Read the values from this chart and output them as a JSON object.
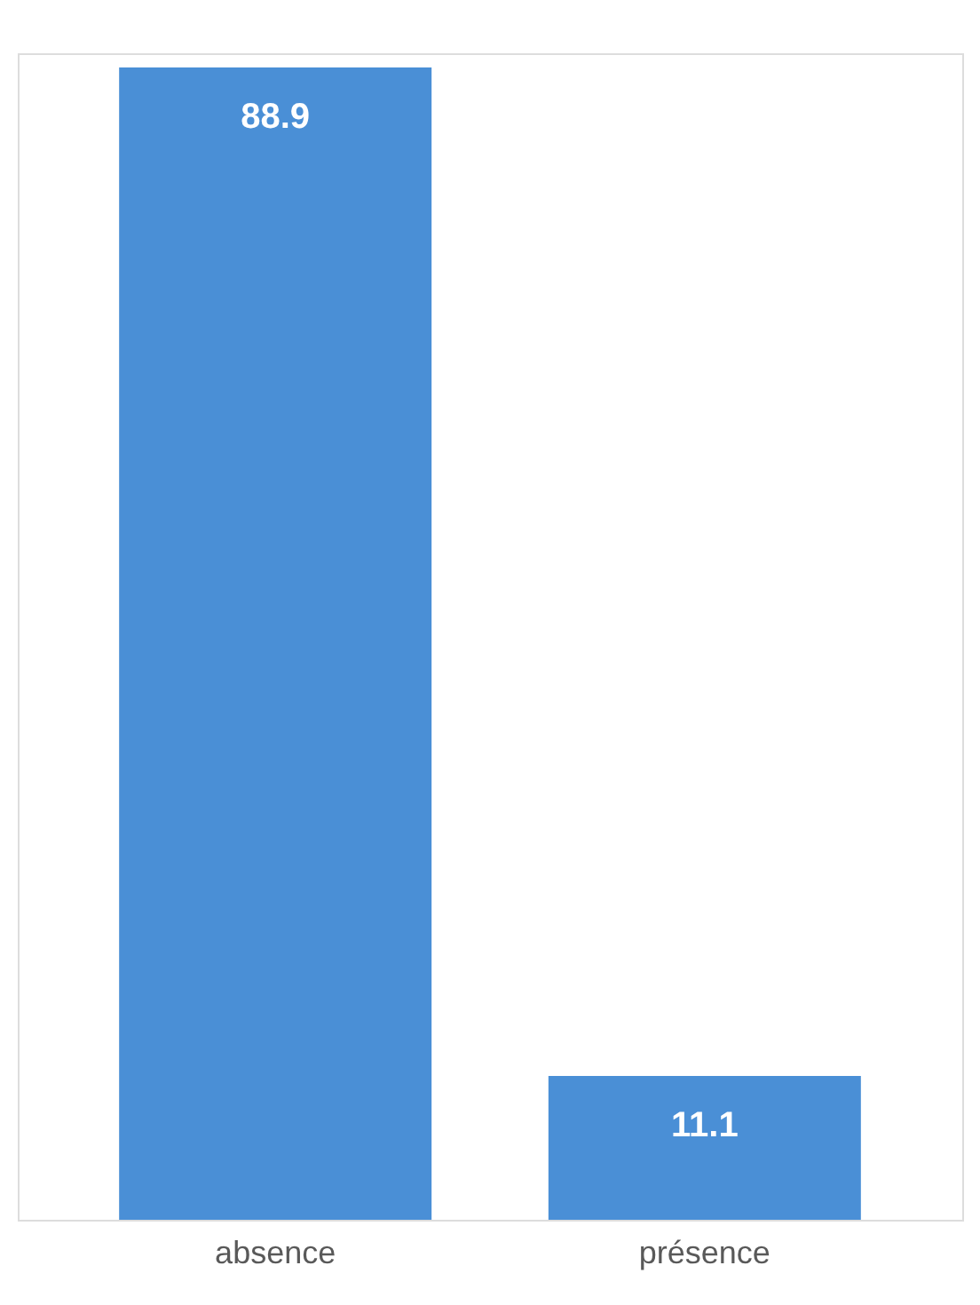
{
  "chart_data": {
    "type": "bar",
    "categories": [
      "absence",
      "présence"
    ],
    "values": [
      88.9,
      11.1
    ],
    "color": "#4a8fd6",
    "data_labels": true
  }
}
